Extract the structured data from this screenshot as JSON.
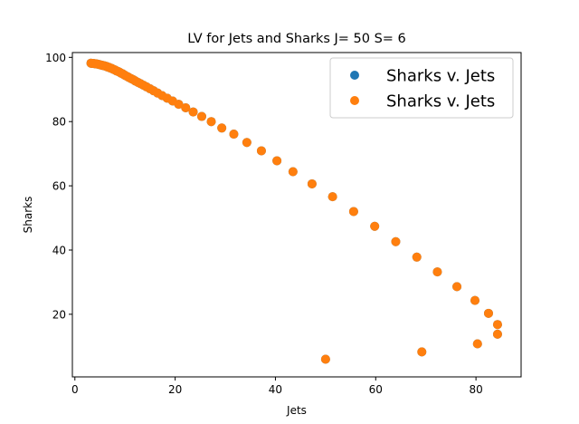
{
  "chart_data": {
    "type": "scatter",
    "title": "LV for Jets and Sharks J= 50 S= 6",
    "xlabel": "Jets",
    "ylabel": "Sharks",
    "xlim": [
      -0.5,
      89
    ],
    "ylim": [
      0.5,
      101.5
    ],
    "xticks": [
      0,
      20,
      40,
      60,
      80
    ],
    "yticks": [
      20,
      40,
      60,
      80,
      100
    ],
    "grid": false,
    "legend_position": "top-right",
    "series": [
      {
        "name": "Sharks v. Jets",
        "color": "#1f77b4",
        "points": [
          [
            50,
            6
          ],
          [
            69.2,
            8.3
          ],
          [
            80.3,
            10.8
          ],
          [
            84.3,
            13.8
          ],
          [
            84.3,
            16.8
          ],
          [
            82.5,
            20.3
          ],
          [
            79.8,
            24.3
          ],
          [
            76.2,
            28.6
          ],
          [
            72.3,
            33.2
          ],
          [
            68.2,
            37.8
          ],
          [
            64.0,
            42.6
          ],
          [
            59.8,
            47.4
          ],
          [
            55.6,
            52.0
          ],
          [
            51.4,
            56.6
          ],
          [
            47.3,
            60.6
          ],
          [
            43.5,
            64.4
          ],
          [
            40.3,
            67.8
          ],
          [
            37.2,
            70.9
          ],
          [
            34.3,
            73.5
          ],
          [
            31.7,
            76.1
          ],
          [
            29.3,
            78.0
          ],
          [
            27.2,
            80.0
          ],
          [
            25.3,
            81.6
          ],
          [
            23.6,
            83.0
          ],
          [
            22.1,
            84.3
          ],
          [
            20.7,
            85.4
          ],
          [
            19.5,
            86.4
          ],
          [
            18.4,
            87.3
          ],
          [
            17.4,
            88.1
          ],
          [
            16.5,
            88.9
          ],
          [
            15.7,
            89.6
          ],
          [
            15.0,
            90.2
          ],
          [
            14.3,
            90.8
          ],
          [
            13.7,
            91.3
          ],
          [
            13.1,
            91.8
          ],
          [
            12.6,
            92.2
          ],
          [
            12.1,
            92.6
          ],
          [
            11.7,
            93.0
          ],
          [
            11.2,
            93.4
          ],
          [
            10.8,
            93.7
          ],
          [
            10.5,
            94.0
          ],
          [
            10.1,
            94.3
          ],
          [
            9.8,
            94.6
          ],
          [
            9.5,
            94.9
          ],
          [
            9.2,
            95.1
          ],
          [
            8.9,
            95.4
          ],
          [
            8.6,
            95.6
          ],
          [
            8.3,
            95.8
          ],
          [
            8.1,
            96.0
          ],
          [
            7.8,
            96.2
          ],
          [
            7.5,
            96.4
          ],
          [
            7.3,
            96.6
          ],
          [
            7.0,
            96.7
          ],
          [
            6.8,
            96.9
          ],
          [
            6.5,
            97.0
          ],
          [
            6.3,
            97.2
          ],
          [
            6.0,
            97.3
          ],
          [
            5.8,
            97.4
          ],
          [
            5.5,
            97.5
          ],
          [
            5.3,
            97.6
          ],
          [
            5.0,
            97.7
          ],
          [
            4.8,
            97.8
          ],
          [
            4.5,
            97.9
          ],
          [
            4.2,
            98.0
          ],
          [
            4.0,
            98.0
          ],
          [
            3.7,
            98.1
          ],
          [
            3.4,
            98.1
          ],
          [
            3.2,
            98.2
          ]
        ]
      },
      {
        "name": "Sharks v. Jets",
        "color": "#ff7f0e",
        "points": [
          [
            50,
            6
          ],
          [
            69.2,
            8.3
          ],
          [
            80.3,
            10.8
          ],
          [
            84.3,
            13.8
          ],
          [
            84.3,
            16.8
          ],
          [
            82.5,
            20.3
          ],
          [
            79.8,
            24.3
          ],
          [
            76.2,
            28.6
          ],
          [
            72.3,
            33.2
          ],
          [
            68.2,
            37.8
          ],
          [
            64.0,
            42.6
          ],
          [
            59.8,
            47.4
          ],
          [
            55.6,
            52.0
          ],
          [
            51.4,
            56.6
          ],
          [
            47.3,
            60.6
          ],
          [
            43.5,
            64.4
          ],
          [
            40.3,
            67.8
          ],
          [
            37.2,
            70.9
          ],
          [
            34.3,
            73.5
          ],
          [
            31.7,
            76.1
          ],
          [
            29.3,
            78.0
          ],
          [
            27.2,
            80.0
          ],
          [
            25.3,
            81.6
          ],
          [
            23.6,
            83.0
          ],
          [
            22.1,
            84.3
          ],
          [
            20.7,
            85.4
          ],
          [
            19.5,
            86.4
          ],
          [
            18.4,
            87.3
          ],
          [
            17.4,
            88.1
          ],
          [
            16.5,
            88.9
          ],
          [
            15.7,
            89.6
          ],
          [
            15.0,
            90.2
          ],
          [
            14.3,
            90.8
          ],
          [
            13.7,
            91.3
          ],
          [
            13.1,
            91.8
          ],
          [
            12.6,
            92.2
          ],
          [
            12.1,
            92.6
          ],
          [
            11.7,
            93.0
          ],
          [
            11.2,
            93.4
          ],
          [
            10.8,
            93.7
          ],
          [
            10.5,
            94.0
          ],
          [
            10.1,
            94.3
          ],
          [
            9.8,
            94.6
          ],
          [
            9.5,
            94.9
          ],
          [
            9.2,
            95.1
          ],
          [
            8.9,
            95.4
          ],
          [
            8.6,
            95.6
          ],
          [
            8.3,
            95.8
          ],
          [
            8.1,
            96.0
          ],
          [
            7.8,
            96.2
          ],
          [
            7.5,
            96.4
          ],
          [
            7.3,
            96.6
          ],
          [
            7.0,
            96.7
          ],
          [
            6.8,
            96.9
          ],
          [
            6.5,
            97.0
          ],
          [
            6.3,
            97.2
          ],
          [
            6.0,
            97.3
          ],
          [
            5.8,
            97.4
          ],
          [
            5.5,
            97.5
          ],
          [
            5.3,
            97.6
          ],
          [
            5.0,
            97.7
          ],
          [
            4.8,
            97.8
          ],
          [
            4.5,
            97.9
          ],
          [
            4.2,
            98.0
          ],
          [
            4.0,
            98.0
          ],
          [
            3.7,
            98.1
          ],
          [
            3.4,
            98.1
          ],
          [
            3.2,
            98.2
          ]
        ]
      }
    ]
  }
}
